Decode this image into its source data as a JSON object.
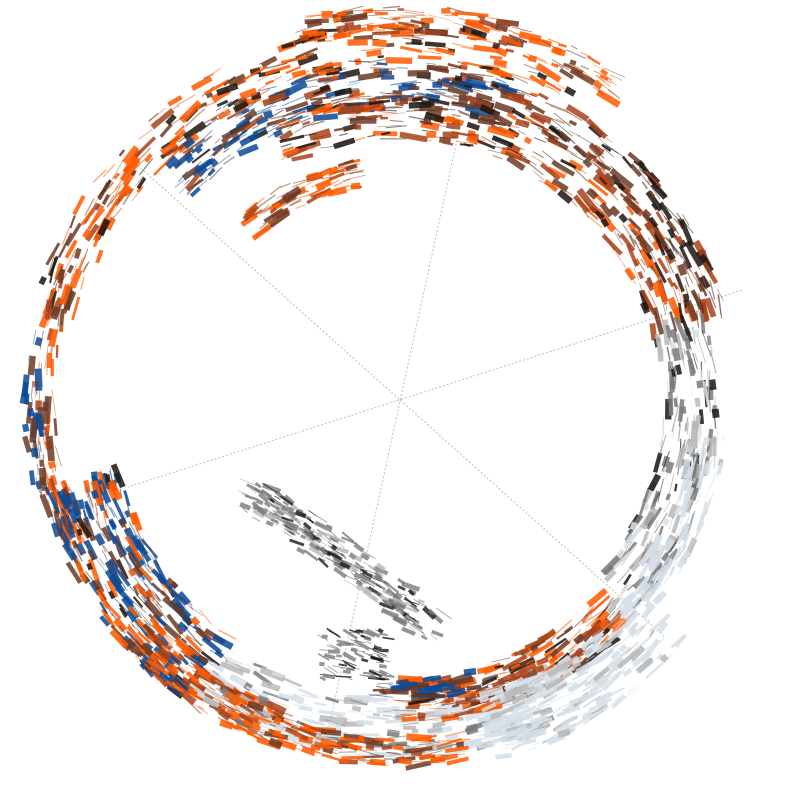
{
  "artwork": {
    "kind": "generative-radial-brushstroke-swirl",
    "background": "#ffffff",
    "guide_line_color": "#bcbcbc",
    "palette": {
      "orange": "#ff5a00",
      "rust": "#a8431c",
      "brown": "#6b3a26",
      "near_black": "#1c1512",
      "navy_blue": "#0b4a96",
      "mid_gray": "#7a7a7a",
      "light_gray": "#b8b8b8",
      "pale_blue_gray": "#d6dfe7"
    }
  }
}
